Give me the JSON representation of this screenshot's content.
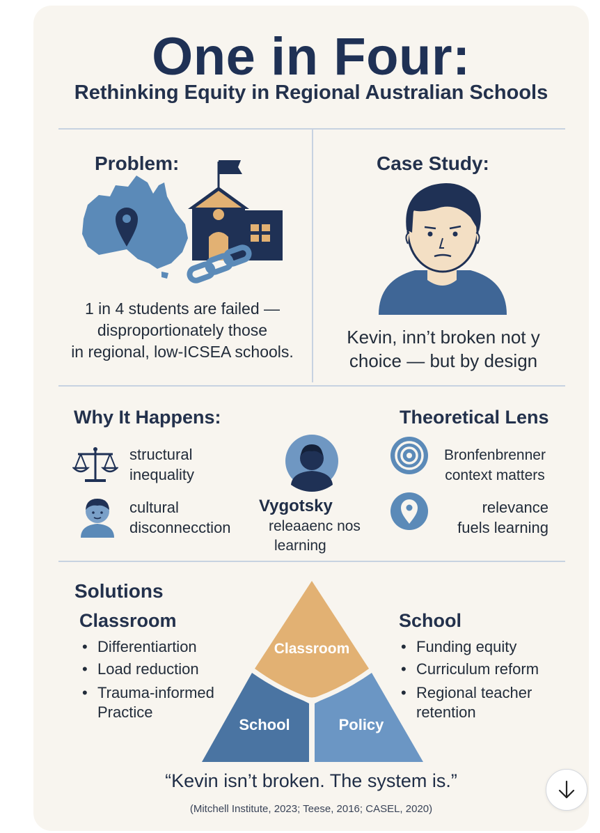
{
  "header": {
    "title": "One in Four:",
    "subtitle": "Rethinking Equity in Regional Australian Schools"
  },
  "problem": {
    "heading": "Problem:",
    "lines": [
      "1 in 4 students are failed —",
      "disproportionately those",
      "in regional, low-ICSEA schools."
    ]
  },
  "case_study": {
    "heading": "Case Study:",
    "lines": [
      "Kevin, inn’t broken not y",
      "choice — but by design"
    ]
  },
  "why": {
    "heading": "Why It Happens:",
    "items": [
      {
        "line1": "structural",
        "line2": "inequality",
        "icon": "scales-icon"
      },
      {
        "line1": "cultural",
        "line2": "disconnecction",
        "icon": "student-icon"
      }
    ],
    "vygotsky": {
      "name": "Vygotsky",
      "line1": "releaaenc nos",
      "line2": "learning",
      "icon": "person-icon"
    }
  },
  "lens": {
    "heading": "Theoretical Lens",
    "items": [
      {
        "line1": "Bronfenbrenner",
        "line2": "context matters",
        "icon": "target-icon"
      },
      {
        "line1": "relevance",
        "line2": "fuels learning",
        "icon": "location-pin-icon"
      }
    ]
  },
  "solutions": {
    "heading": "Solutions",
    "classroom": {
      "heading": "Classroom",
      "items": [
        "Differentiartion",
        "Load reduction",
        "Trauma-informed Practice"
      ]
    },
    "school": {
      "heading": "School",
      "items": [
        "Funding equity",
        "Curriculum reform",
        "Regional teacher retention"
      ]
    },
    "pyramid": {
      "top": "Classroom",
      "left": "School",
      "right": "Policy"
    }
  },
  "footer": {
    "quote": "“Kevin isn’t broken. The system is.”",
    "citation": "(Mitchell Institute, 2023; Teese, 2016; CASEL, 2020)"
  },
  "colors": {
    "navy": "#1f3155",
    "blue": "#5b8ab8",
    "dark_blue": "#4a74a2",
    "tan": "#e2b173",
    "background": "#f8f5ef"
  }
}
